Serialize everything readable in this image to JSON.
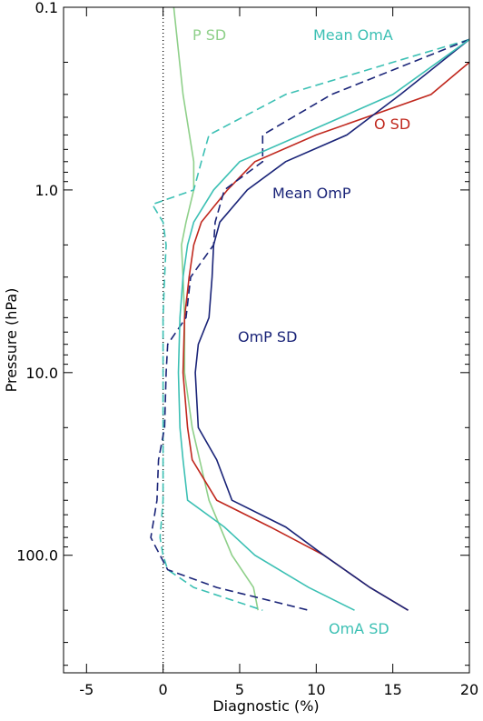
{
  "chart_data": {
    "type": "line",
    "xlabel": "Diagnostic (%)",
    "ylabel": "Pressure (hPa)",
    "xlim": [
      -6.5,
      20
    ],
    "xticks": [
      -5,
      0,
      5,
      10,
      15,
      20
    ],
    "ylim": [
      440,
      0.1
    ],
    "ylog": true,
    "yticks": [
      0.1,
      {
        "value": 1,
        "label": "1.0"
      },
      {
        "value": 10,
        "label": "10.0"
      },
      {
        "value": 100,
        "label": "100.0"
      }
    ],
    "reference_x": 0,
    "series": [
      {
        "name": "P SD",
        "color": "#8fd08a",
        "dash": false,
        "x": [
          0.7,
          1.3,
          2,
          2,
          1.5,
          1.2,
          1.3,
          1.4,
          1.4,
          1.9,
          3,
          4.5,
          5.9,
          6.2
        ],
        "y": [
          0.1,
          0.3,
          0.7,
          1,
          1.5,
          2,
          3,
          5,
          10,
          20,
          50,
          100,
          150,
          200
        ]
      },
      {
        "name": "Mean OmA",
        "color": "#3cc0b4",
        "dash": true,
        "x": [
          20,
          15,
          8,
          3,
          2.5,
          2,
          -0.7,
          0,
          0.2,
          0.1,
          0,
          0,
          0,
          0,
          -0.2,
          0,
          0.3,
          2,
          6.5
        ],
        "y": [
          0.15,
          0.2,
          0.3,
          0.5,
          0.7,
          1,
          1.2,
          1.5,
          2,
          3,
          5,
          10,
          20,
          50,
          80,
          100,
          120,
          150,
          200
        ]
      },
      {
        "name": "O SD",
        "color": "#c0281e",
        "dash": false,
        "x": [
          20,
          17.5,
          10,
          6,
          4.2,
          2.5,
          2,
          1.7,
          1.4,
          1.3,
          1.6,
          1.9,
          3.5,
          7,
          10.5,
          13.5,
          16
        ],
        "y": [
          0.2,
          0.3,
          0.5,
          0.7,
          1,
          1.5,
          2,
          3,
          5,
          10,
          20,
          30,
          50,
          70,
          100,
          150,
          200
        ]
      },
      {
        "name": "Mean OmP",
        "color": "#1a2478",
        "dash": true,
        "x": [
          20,
          11,
          6.5,
          6.5,
          4,
          3.4,
          3.3,
          1.8,
          1.5,
          0.3,
          0.2,
          0.1,
          -0.3,
          -0.4,
          -0.8,
          -0.2,
          0.3,
          3.5,
          9.5
        ],
        "y": [
          0.15,
          0.3,
          0.5,
          0.7,
          1,
          1.5,
          2,
          3,
          5,
          7,
          10,
          20,
          30,
          50,
          80,
          100,
          120,
          150,
          200
        ]
      },
      {
        "name": "OmP SD",
        "color": "#1a2478",
        "dash": false,
        "x": [
          20,
          15.5,
          12,
          8,
          5.5,
          3.7,
          3.3,
          3.2,
          3,
          2.3,
          2.1,
          2.3,
          3.5,
          4.5,
          8,
          10.5,
          13.5,
          16
        ],
        "y": [
          0.15,
          0.3,
          0.5,
          0.7,
          1,
          1.5,
          2,
          3,
          5,
          7,
          10,
          20,
          30,
          50,
          70,
          100,
          150,
          200
        ]
      },
      {
        "name": "OmA SD",
        "color": "#3cc0b4",
        "dash": false,
        "x": [
          20,
          15,
          9,
          5,
          3.3,
          2,
          1.6,
          1.3,
          1.1,
          1.0,
          1.1,
          1.3,
          1.6,
          4,
          6,
          9.5,
          12.5
        ],
        "y": [
          0.15,
          0.3,
          0.5,
          0.7,
          1,
          1.5,
          2,
          3,
          5,
          10,
          20,
          30,
          50,
          70,
          100,
          150,
          200
        ]
      }
    ]
  }
}
